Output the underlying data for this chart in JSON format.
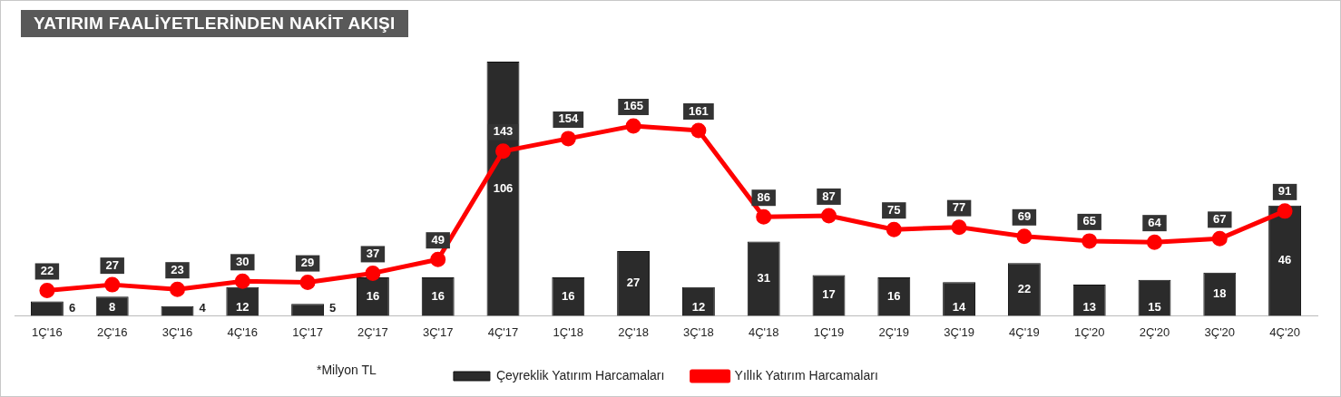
{
  "chart_data": {
    "type": "bar",
    "title": "YATIRIM FAALİYETLERİNDEN NAKİT AKIŞI",
    "categories": [
      "1Ç'16",
      "2Ç'16",
      "3Ç'16",
      "4Ç'16",
      "1Ç'17",
      "2Ç'17",
      "3Ç'17",
      "4Ç'17",
      "1Ç'18",
      "2Ç'18",
      "3Ç'18",
      "4Ç'18",
      "1Ç'19",
      "2Ç'19",
      "3Ç'19",
      "4Ç'19",
      "1Ç'20",
      "2Ç'20",
      "3Ç'20",
      "4Ç'20"
    ],
    "series": [
      {
        "name": "Çeyreklik Yatırım Harcamaları",
        "type": "bar",
        "color": "#2b2b2b",
        "values": [
          6,
          8,
          4,
          12,
          5,
          16,
          16,
          106,
          16,
          27,
          12,
          31,
          17,
          16,
          14,
          22,
          13,
          15,
          18,
          46
        ]
      },
      {
        "name": "Yıllık Yatırım Harcamaları",
        "type": "line",
        "axis": "y2",
        "color": "#ff0000",
        "values": [
          22,
          27,
          23,
          30,
          29,
          37,
          49,
          143,
          154,
          165,
          161,
          86,
          87,
          75,
          77,
          69,
          65,
          64,
          67,
          91
        ]
      }
    ],
    "data_labels": true,
    "legend": "bottom",
    "marker": "circle",
    "grid": false,
    "tick_labels": "x",
    "annotations": [
      "*Milyon TL"
    ]
  }
}
